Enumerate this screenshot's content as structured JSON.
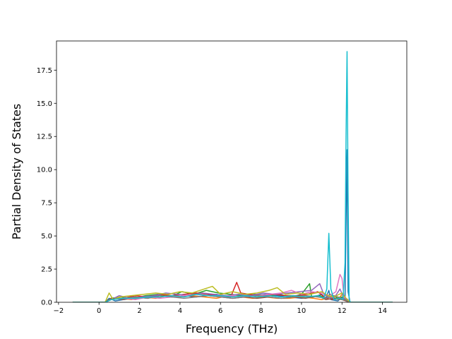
{
  "chart_data": {
    "type": "line",
    "title": "",
    "xlabel": "Frequency (THz)",
    "ylabel": "Partial Density of States",
    "xlim": [
      -2.1,
      15.2
    ],
    "ylim": [
      0,
      19.7
    ],
    "xticks": [
      -2,
      0,
      2,
      4,
      6,
      8,
      10,
      12,
      14
    ],
    "yticks": [
      0.0,
      2.5,
      5.0,
      7.5,
      10.0,
      12.5,
      15.0,
      17.5
    ],
    "xtick_labels": [
      "−2",
      "0",
      "2",
      "4",
      "6",
      "8",
      "10",
      "12",
      "14"
    ],
    "ytick_labels": [
      "0.0",
      "2.5",
      "5.0",
      "7.5",
      "10.0",
      "12.5",
      "15.0",
      "17.5"
    ],
    "grid": false,
    "legend": "none",
    "colors": [
      "#1f77b4",
      "#ff7f0e",
      "#2ca02c",
      "#d62728",
      "#9467bd",
      "#8c564b",
      "#e377c2",
      "#7f7f7f",
      "#bcbd22",
      "#17becf"
    ],
    "series": [
      {
        "color": "#1f77b4",
        "points": [
          [
            -1.3,
            0
          ],
          [
            0.3,
            0
          ],
          [
            0.5,
            0.3
          ],
          [
            0.8,
            0.1
          ],
          [
            1.2,
            0.2
          ],
          [
            1.8,
            0.3
          ],
          [
            2.4,
            0.4
          ],
          [
            3.0,
            0.5
          ],
          [
            3.6,
            0.4
          ],
          [
            4.2,
            0.5
          ],
          [
            4.8,
            0.6
          ],
          [
            5.3,
            0.5
          ],
          [
            5.8,
            0.6
          ],
          [
            6.4,
            0.4
          ],
          [
            7.0,
            0.5
          ],
          [
            7.6,
            0.5
          ],
          [
            8.2,
            0.6
          ],
          [
            8.8,
            0.5
          ],
          [
            9.4,
            0.4
          ],
          [
            10.0,
            0.3
          ],
          [
            10.6,
            0.4
          ],
          [
            11.0,
            0.6
          ],
          [
            11.2,
            0.3
          ],
          [
            11.35,
            0.9
          ],
          [
            11.45,
            0.2
          ],
          [
            11.8,
            0.1
          ],
          [
            12.0,
            0.4
          ],
          [
            12.15,
            0.2
          ],
          [
            12.25,
            11.5
          ],
          [
            12.3,
            0.8
          ],
          [
            12.4,
            0
          ],
          [
            14.5,
            0
          ]
        ]
      },
      {
        "color": "#ff7f0e",
        "points": [
          [
            -1.3,
            0
          ],
          [
            0.3,
            0
          ],
          [
            0.5,
            0.2
          ],
          [
            1.0,
            0.3
          ],
          [
            1.6,
            0.2
          ],
          [
            2.2,
            0.4
          ],
          [
            2.8,
            0.3
          ],
          [
            3.4,
            0.5
          ],
          [
            4.0,
            0.4
          ],
          [
            4.6,
            0.5
          ],
          [
            5.2,
            0.4
          ],
          [
            5.8,
            0.3
          ],
          [
            6.4,
            0.5
          ],
          [
            7.0,
            0.4
          ],
          [
            7.6,
            0.3
          ],
          [
            8.2,
            0.4
          ],
          [
            8.8,
            0.3
          ],
          [
            9.4,
            0.3
          ],
          [
            10.0,
            0.4
          ],
          [
            10.6,
            0.3
          ],
          [
            11.0,
            0.2
          ],
          [
            11.4,
            0.4
          ],
          [
            11.8,
            0.2
          ],
          [
            12.0,
            0.6
          ],
          [
            12.2,
            0.1
          ],
          [
            12.4,
            0
          ],
          [
            14.5,
            0
          ]
        ]
      },
      {
        "color": "#2ca02c",
        "points": [
          [
            -1.3,
            0
          ],
          [
            0.3,
            0
          ],
          [
            0.6,
            0.3
          ],
          [
            1.1,
            0.4
          ],
          [
            1.7,
            0.3
          ],
          [
            2.3,
            0.5
          ],
          [
            2.9,
            0.6
          ],
          [
            3.5,
            0.4
          ],
          [
            4.1,
            0.8
          ],
          [
            4.7,
            0.6
          ],
          [
            5.3,
            0.9
          ],
          [
            5.9,
            0.7
          ],
          [
            6.5,
            0.6
          ],
          [
            7.1,
            0.5
          ],
          [
            7.7,
            0.6
          ],
          [
            8.3,
            0.5
          ],
          [
            8.9,
            0.6
          ],
          [
            9.5,
            0.4
          ],
          [
            10.0,
            0.6
          ],
          [
            10.4,
            1.4
          ],
          [
            10.5,
            0.4
          ],
          [
            10.9,
            0.5
          ],
          [
            11.2,
            0.3
          ],
          [
            11.4,
            0.6
          ],
          [
            11.8,
            0.3
          ],
          [
            12.0,
            0.4
          ],
          [
            12.2,
            0.2
          ],
          [
            12.4,
            0
          ],
          [
            14.5,
            0
          ]
        ]
      },
      {
        "color": "#d62728",
        "points": [
          [
            -1.3,
            0
          ],
          [
            0.3,
            0
          ],
          [
            0.6,
            0.2
          ],
          [
            1.2,
            0.3
          ],
          [
            1.8,
            0.5
          ],
          [
            2.4,
            0.4
          ],
          [
            3.0,
            0.6
          ],
          [
            3.6,
            0.5
          ],
          [
            4.2,
            0.6
          ],
          [
            4.8,
            0.7
          ],
          [
            5.4,
            0.6
          ],
          [
            6.0,
            0.5
          ],
          [
            6.5,
            0.4
          ],
          [
            6.8,
            1.5
          ],
          [
            7.0,
            0.7
          ],
          [
            7.4,
            0.6
          ],
          [
            8.0,
            0.5
          ],
          [
            8.6,
            0.6
          ],
          [
            9.2,
            0.5
          ],
          [
            9.8,
            0.5
          ],
          [
            10.3,
            0.6
          ],
          [
            10.8,
            0.8
          ],
          [
            11.2,
            0.3
          ],
          [
            11.6,
            0.2
          ],
          [
            12.0,
            0.3
          ],
          [
            12.2,
            0.1
          ],
          [
            12.4,
            0
          ],
          [
            14.5,
            0
          ]
        ]
      },
      {
        "color": "#9467bd",
        "points": [
          [
            -1.3,
            0
          ],
          [
            0.3,
            0
          ],
          [
            0.6,
            0.2
          ],
          [
            1.0,
            0.5
          ],
          [
            1.5,
            0.3
          ],
          [
            2.1,
            0.4
          ],
          [
            2.7,
            0.5
          ],
          [
            3.3,
            0.7
          ],
          [
            3.9,
            0.6
          ],
          [
            4.5,
            0.5
          ],
          [
            5.1,
            0.7
          ],
          [
            5.7,
            0.6
          ],
          [
            6.3,
            0.5
          ],
          [
            6.9,
            0.6
          ],
          [
            7.5,
            0.5
          ],
          [
            8.1,
            0.7
          ],
          [
            8.7,
            0.6
          ],
          [
            9.3,
            0.7
          ],
          [
            9.9,
            0.8
          ],
          [
            10.5,
            0.9
          ],
          [
            10.9,
            1.4
          ],
          [
            11.1,
            0.6
          ],
          [
            11.3,
            0.4
          ],
          [
            11.6,
            0.3
          ],
          [
            11.9,
            1.0
          ],
          [
            12.1,
            0.3
          ],
          [
            12.3,
            0.2
          ],
          [
            12.4,
            0
          ],
          [
            14.5,
            0
          ]
        ]
      },
      {
        "color": "#8c564b",
        "points": [
          [
            -1.3,
            0
          ],
          [
            0.3,
            0
          ],
          [
            0.6,
            0.3
          ],
          [
            1.2,
            0.2
          ],
          [
            1.8,
            0.4
          ],
          [
            2.4,
            0.3
          ],
          [
            3.0,
            0.5
          ],
          [
            3.6,
            0.4
          ],
          [
            4.2,
            0.5
          ],
          [
            4.8,
            0.4
          ],
          [
            5.4,
            0.5
          ],
          [
            6.0,
            0.4
          ],
          [
            6.6,
            0.3
          ],
          [
            7.2,
            0.4
          ],
          [
            7.8,
            0.3
          ],
          [
            8.4,
            0.4
          ],
          [
            9.0,
            0.3
          ],
          [
            9.6,
            0.4
          ],
          [
            10.2,
            0.3
          ],
          [
            10.8,
            0.5
          ],
          [
            11.2,
            0.2
          ],
          [
            11.6,
            0.3
          ],
          [
            12.0,
            0.2
          ],
          [
            12.4,
            0
          ],
          [
            14.5,
            0
          ]
        ]
      },
      {
        "color": "#e377c2",
        "points": [
          [
            -1.3,
            0
          ],
          [
            0.3,
            0
          ],
          [
            0.6,
            0.2
          ],
          [
            1.2,
            0.3
          ],
          [
            1.8,
            0.2
          ],
          [
            2.4,
            0.4
          ],
          [
            3.0,
            0.3
          ],
          [
            3.6,
            0.4
          ],
          [
            4.2,
            0.5
          ],
          [
            4.8,
            0.6
          ],
          [
            5.4,
            0.5
          ],
          [
            6.0,
            0.4
          ],
          [
            6.6,
            0.5
          ],
          [
            7.2,
            0.4
          ],
          [
            7.8,
            0.5
          ],
          [
            8.4,
            0.6
          ],
          [
            9.0,
            0.7
          ],
          [
            9.5,
            0.9
          ],
          [
            10.0,
            0.6
          ],
          [
            10.5,
            0.8
          ],
          [
            11.0,
            0.7
          ],
          [
            11.4,
            0.5
          ],
          [
            11.7,
            0.8
          ],
          [
            11.9,
            2.1
          ],
          [
            12.0,
            1.8
          ],
          [
            12.1,
            0.4
          ],
          [
            12.3,
            0.2
          ],
          [
            12.4,
            0
          ],
          [
            14.5,
            0
          ]
        ]
      },
      {
        "color": "#7f7f7f",
        "points": [
          [
            -1.3,
            0
          ],
          [
            0.3,
            0
          ],
          [
            0.6,
            0.2
          ],
          [
            1.2,
            0.3
          ],
          [
            1.8,
            0.4
          ],
          [
            2.4,
            0.3
          ],
          [
            3.0,
            0.5
          ],
          [
            3.6,
            0.4
          ],
          [
            4.2,
            0.3
          ],
          [
            4.8,
            0.4
          ],
          [
            5.4,
            0.5
          ],
          [
            6.0,
            0.4
          ],
          [
            6.6,
            0.3
          ],
          [
            7.2,
            0.4
          ],
          [
            7.8,
            0.5
          ],
          [
            8.4,
            0.4
          ],
          [
            9.0,
            0.3
          ],
          [
            9.6,
            0.4
          ],
          [
            10.2,
            0.5
          ],
          [
            10.8,
            0.4
          ],
          [
            11.2,
            0.3
          ],
          [
            11.6,
            0.5
          ],
          [
            12.0,
            0.3
          ],
          [
            12.4,
            0
          ],
          [
            14.5,
            0
          ]
        ]
      },
      {
        "color": "#bcbd22",
        "points": [
          [
            -1.3,
            0
          ],
          [
            0.3,
            0
          ],
          [
            0.5,
            0.7
          ],
          [
            0.7,
            0.2
          ],
          [
            1.0,
            0.4
          ],
          [
            1.6,
            0.5
          ],
          [
            2.2,
            0.6
          ],
          [
            2.8,
            0.7
          ],
          [
            3.4,
            0.6
          ],
          [
            4.0,
            0.8
          ],
          [
            4.6,
            0.7
          ],
          [
            5.2,
            1.0
          ],
          [
            5.6,
            1.2
          ],
          [
            6.0,
            0.6
          ],
          [
            6.6,
            0.8
          ],
          [
            7.2,
            0.6
          ],
          [
            7.8,
            0.7
          ],
          [
            8.4,
            0.9
          ],
          [
            8.8,
            1.1
          ],
          [
            9.2,
            0.6
          ],
          [
            9.8,
            0.7
          ],
          [
            10.4,
            0.6
          ],
          [
            11.0,
            0.8
          ],
          [
            11.3,
            0.5
          ],
          [
            11.6,
            0.4
          ],
          [
            12.0,
            0.7
          ],
          [
            12.2,
            0.3
          ],
          [
            12.4,
            0
          ],
          [
            14.5,
            0
          ]
        ]
      },
      {
        "color": "#17becf",
        "points": [
          [
            -1.3,
            0
          ],
          [
            0.3,
            0
          ],
          [
            0.6,
            0.2
          ],
          [
            1.2,
            0.3
          ],
          [
            1.8,
            0.3
          ],
          [
            2.4,
            0.4
          ],
          [
            3.0,
            0.4
          ],
          [
            3.6,
            0.5
          ],
          [
            4.2,
            0.4
          ],
          [
            4.8,
            0.6
          ],
          [
            5.4,
            0.5
          ],
          [
            6.0,
            0.5
          ],
          [
            6.6,
            0.4
          ],
          [
            7.2,
            0.5
          ],
          [
            7.8,
            0.4
          ],
          [
            8.4,
            0.5
          ],
          [
            9.0,
            0.4
          ],
          [
            9.6,
            0.5
          ],
          [
            10.2,
            0.4
          ],
          [
            10.8,
            0.5
          ],
          [
            11.1,
            0.3
          ],
          [
            11.25,
            1.0
          ],
          [
            11.35,
            5.2
          ],
          [
            11.45,
            1.0
          ],
          [
            11.6,
            0.2
          ],
          [
            11.9,
            0.3
          ],
          [
            12.05,
            0.2
          ],
          [
            12.15,
            3.0
          ],
          [
            12.2,
            12.5
          ],
          [
            12.25,
            18.9
          ],
          [
            12.3,
            8.3
          ],
          [
            12.35,
            0.3
          ],
          [
            12.4,
            0
          ],
          [
            14.5,
            0
          ]
        ]
      }
    ]
  }
}
